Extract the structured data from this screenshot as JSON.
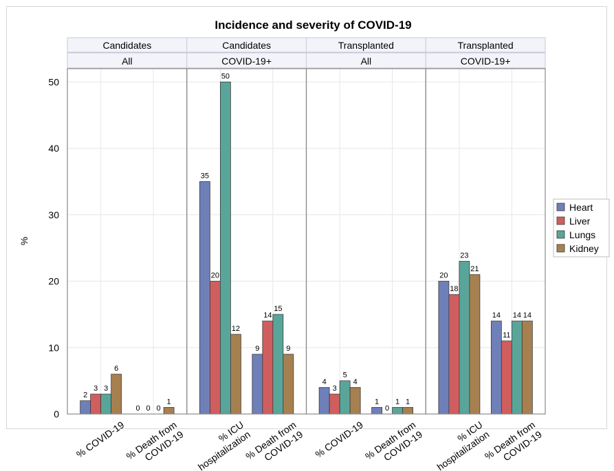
{
  "chart_data": {
    "type": "bar",
    "title": "Incidence and severity of COVID-19",
    "ylabel": "%",
    "ylim": [
      0,
      52
    ],
    "yticks": [
      0,
      10,
      20,
      30,
      40,
      50
    ],
    "grid": true,
    "legend_position": "right",
    "series": [
      {
        "name": "Heart",
        "color": "#6f7fb8"
      },
      {
        "name": "Liver",
        "color": "#d05e5e"
      },
      {
        "name": "Lungs",
        "color": "#5aa59a"
      },
      {
        "name": "Kidney",
        "color": "#a78050"
      }
    ],
    "panels": [
      {
        "group": "Candidates",
        "subgroup": "All",
        "categories": [
          {
            "label_lines": [
              "% COVID-19"
            ],
            "values": [
              2,
              3,
              3,
              6
            ],
            "labels": [
              "2",
              "3",
              "3",
              "6"
            ]
          },
          {
            "label_lines": [
              "% Death from",
              "COVID-19"
            ],
            "values": [
              0,
              0,
              0,
              1
            ],
            "labels": [
              "0",
              "0",
              "0",
              "1"
            ]
          }
        ]
      },
      {
        "group": "Candidates",
        "subgroup": "COVID-19+",
        "categories": [
          {
            "label_lines": [
              "% ICU",
              "hospitalization"
            ],
            "values": [
              35,
              20,
              50,
              12
            ],
            "labels": [
              "35",
              "20",
              "50",
              "12"
            ]
          },
          {
            "label_lines": [
              "% Death from",
              "COVID-19"
            ],
            "values": [
              9,
              14,
              15,
              9
            ],
            "labels": [
              "9",
              "14",
              "15",
              "9"
            ]
          }
        ]
      },
      {
        "group": "Transplanted",
        "subgroup": "All",
        "categories": [
          {
            "label_lines": [
              "% COVID-19"
            ],
            "values": [
              4,
              3,
              5,
              4
            ],
            "labels": [
              "4",
              "3",
              "5",
              "4"
            ]
          },
          {
            "label_lines": [
              "% Death from",
              "COVID-19"
            ],
            "values": [
              1,
              0,
              1,
              1
            ],
            "labels": [
              "1",
              "0",
              "1",
              "1"
            ]
          }
        ]
      },
      {
        "group": "Transplanted",
        "subgroup": "COVID-19+",
        "categories": [
          {
            "label_lines": [
              "% ICU",
              "hospitalization"
            ],
            "values": [
              20,
              18,
              23,
              21
            ],
            "labels": [
              "20",
              "18",
              "23",
              "21"
            ]
          },
          {
            "label_lines": [
              "% Death from",
              "COVID-19"
            ],
            "values": [
              14,
              11,
              14,
              14
            ],
            "labels": [
              "14",
              "11",
              "14",
              "14"
            ]
          }
        ]
      }
    ]
  }
}
